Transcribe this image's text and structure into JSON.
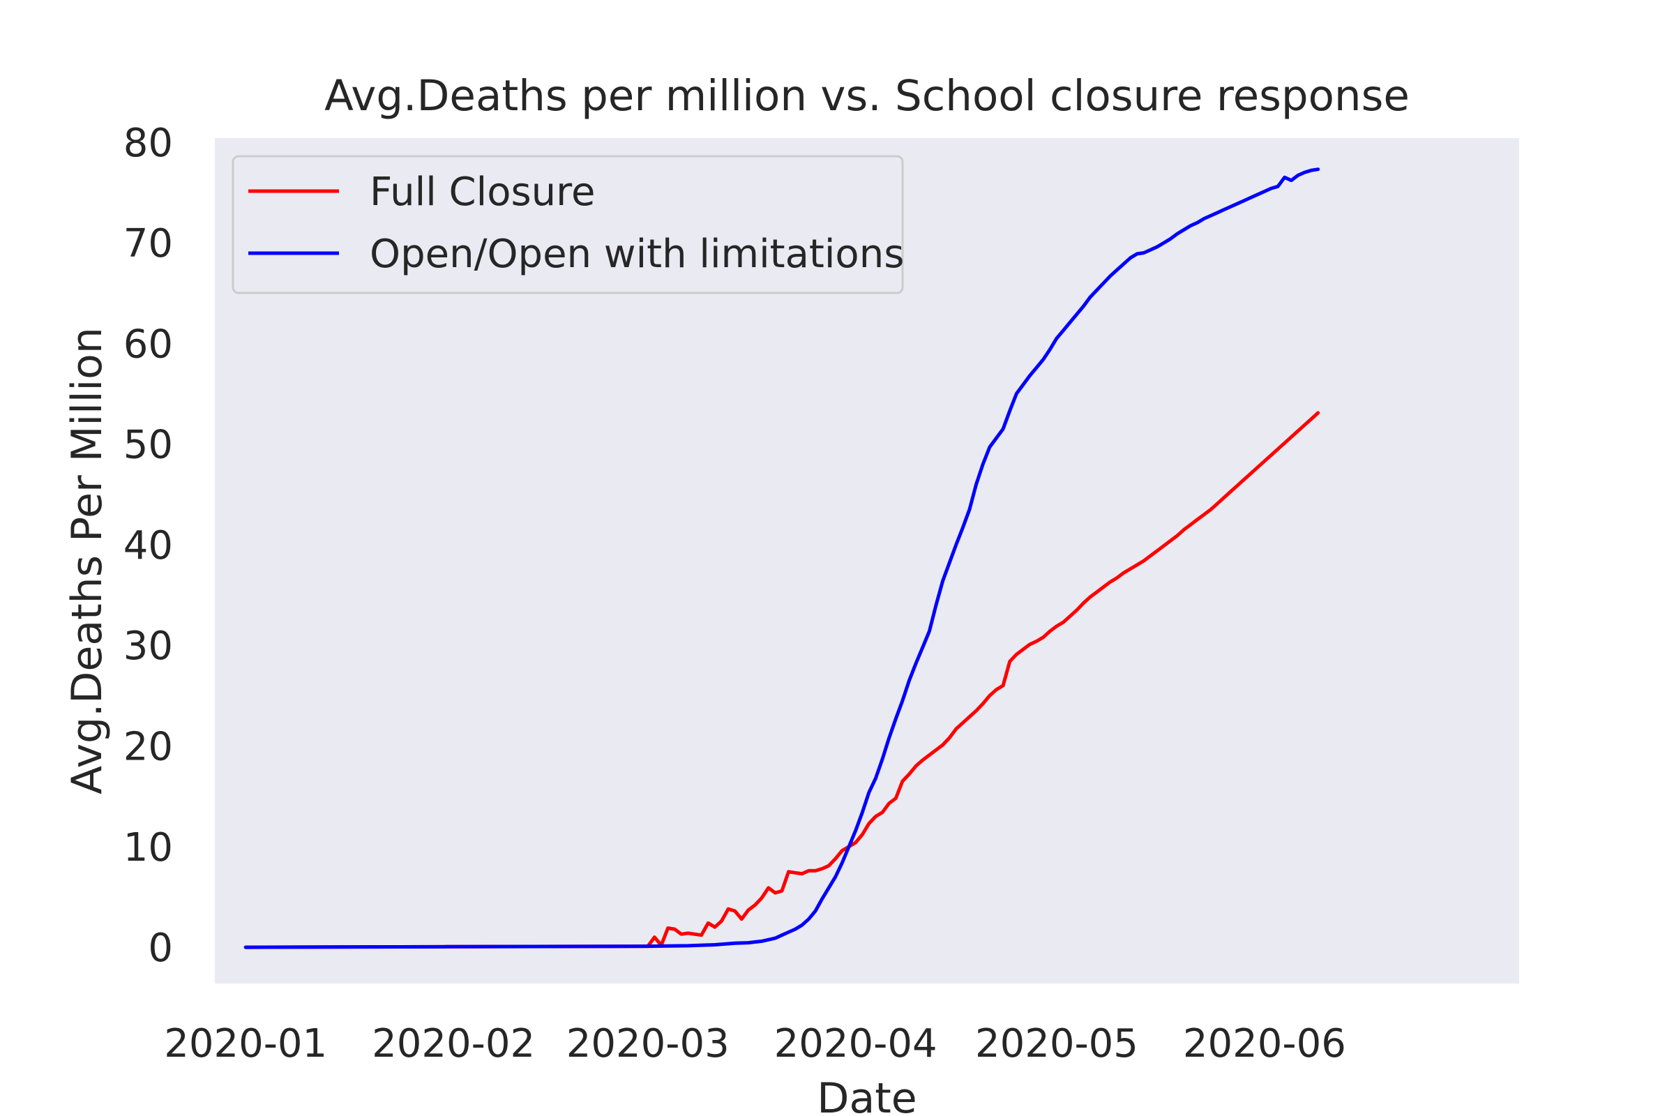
{
  "chart_data": {
    "type": "line",
    "title": "Avg.Deaths per million vs. School closure response",
    "xlabel": "Date",
    "ylabel": "Avg.Deaths Per Million",
    "xlim": [
      -4.6,
      190
    ],
    "ylim": [
      -3.6,
      80.4
    ],
    "x_ticks": [
      {
        "value": 0,
        "label": "2020-01"
      },
      {
        "value": 31,
        "label": "2020-02"
      },
      {
        "value": 60,
        "label": "2020-03"
      },
      {
        "value": 91,
        "label": "2020-04"
      },
      {
        "value": 121,
        "label": "2020-05"
      },
      {
        "value": 152,
        "label": "2020-06"
      }
    ],
    "y_ticks": [
      0,
      10,
      20,
      30,
      40,
      50,
      60,
      70,
      80
    ],
    "grid": false,
    "legend_position": "upper-left",
    "series": [
      {
        "name": "Full Closure",
        "color": "#ff0000",
        "points": [
          [
            0,
            0
          ],
          [
            30,
            0.05
          ],
          [
            60,
            0.1
          ],
          [
            61,
            1.0
          ],
          [
            62,
            0.2
          ],
          [
            63,
            1.9
          ],
          [
            64,
            1.8
          ],
          [
            65,
            1.3
          ],
          [
            66,
            1.4
          ],
          [
            67,
            1.3
          ],
          [
            68,
            1.2
          ],
          [
            69,
            2.4
          ],
          [
            70,
            2.0
          ],
          [
            71,
            2.6
          ],
          [
            72,
            3.8
          ],
          [
            73,
            3.6
          ],
          [
            74,
            2.8
          ],
          [
            75,
            3.7
          ],
          [
            76,
            4.2
          ],
          [
            77,
            4.9
          ],
          [
            78,
            5.9
          ],
          [
            79,
            5.4
          ],
          [
            80,
            5.6
          ],
          [
            81,
            7.5
          ],
          [
            82,
            7.4
          ],
          [
            83,
            7.3
          ],
          [
            84,
            7.6
          ],
          [
            85,
            7.6
          ],
          [
            86,
            7.8
          ],
          [
            87,
            8.1
          ],
          [
            88,
            8.8
          ],
          [
            89,
            9.6
          ],
          [
            90,
            10.0
          ],
          [
            91,
            10.4
          ],
          [
            92,
            11.2
          ],
          [
            93,
            12.3
          ],
          [
            94,
            13.0
          ],
          [
            95,
            13.4
          ],
          [
            96,
            14.3
          ],
          [
            97,
            14.8
          ],
          [
            98,
            16.5
          ],
          [
            99,
            17.2
          ],
          [
            100,
            18.0
          ],
          [
            101,
            18.6
          ],
          [
            102,
            19.1
          ],
          [
            103,
            19.6
          ],
          [
            104,
            20.1
          ],
          [
            105,
            20.8
          ],
          [
            106,
            21.7
          ],
          [
            107,
            22.3
          ],
          [
            108,
            22.9
          ],
          [
            109,
            23.5
          ],
          [
            110,
            24.2
          ],
          [
            111,
            25.0
          ],
          [
            112,
            25.6
          ],
          [
            113,
            26.0
          ],
          [
            114,
            28.4
          ],
          [
            115,
            29.1
          ],
          [
            116,
            29.6
          ],
          [
            117,
            30.1
          ],
          [
            118,
            30.4
          ],
          [
            119,
            30.8
          ],
          [
            120,
            31.4
          ],
          [
            121,
            31.9
          ],
          [
            122,
            32.3
          ],
          [
            123,
            32.9
          ],
          [
            124,
            33.5
          ],
          [
            125,
            34.2
          ],
          [
            126,
            34.8
          ],
          [
            127,
            35.3
          ],
          [
            128,
            35.8
          ],
          [
            129,
            36.3
          ],
          [
            130,
            36.7
          ],
          [
            131,
            37.2
          ],
          [
            132,
            37.6
          ],
          [
            133,
            38.0
          ],
          [
            134,
            38.4
          ],
          [
            135,
            38.9
          ],
          [
            136,
            39.4
          ],
          [
            137,
            39.9
          ],
          [
            138,
            40.4
          ],
          [
            139,
            40.9
          ],
          [
            140,
            41.5
          ],
          [
            141,
            42.0
          ],
          [
            142,
            42.5
          ],
          [
            143,
            43.0
          ],
          [
            144,
            43.5
          ],
          [
            145,
            44.1
          ],
          [
            146,
            44.7
          ],
          [
            147,
            45.3
          ],
          [
            148,
            45.9
          ],
          [
            149,
            46.5
          ],
          [
            150,
            47.1
          ],
          [
            151,
            47.7
          ],
          [
            152,
            48.3
          ],
          [
            153,
            48.9
          ],
          [
            154,
            49.5
          ],
          [
            155,
            50.1
          ],
          [
            156,
            50.7
          ],
          [
            157,
            51.3
          ],
          [
            158,
            51.9
          ],
          [
            159,
            52.5
          ],
          [
            160,
            53.1
          ]
        ]
      },
      {
        "name": "Open/Open with limitations",
        "color": "#0000ff",
        "points": [
          [
            0,
            0
          ],
          [
            30,
            0.05
          ],
          [
            60,
            0.1
          ],
          [
            66,
            0.15
          ],
          [
            70,
            0.25
          ],
          [
            73,
            0.4
          ],
          [
            75,
            0.45
          ],
          [
            77,
            0.6
          ],
          [
            79,
            0.9
          ],
          [
            80,
            1.2
          ],
          [
            81,
            1.5
          ],
          [
            82,
            1.8
          ],
          [
            83,
            2.2
          ],
          [
            84,
            2.8
          ],
          [
            85,
            3.6
          ],
          [
            86,
            4.8
          ],
          [
            87,
            5.9
          ],
          [
            88,
            7.0
          ],
          [
            89,
            8.4
          ],
          [
            90,
            10.0
          ],
          [
            91,
            11.6
          ],
          [
            92,
            13.4
          ],
          [
            93,
            15.4
          ],
          [
            94,
            16.8
          ],
          [
            95,
            18.7
          ],
          [
            96,
            20.8
          ],
          [
            97,
            22.7
          ],
          [
            98,
            24.5
          ],
          [
            99,
            26.5
          ],
          [
            100,
            28.2
          ],
          [
            101,
            29.8
          ],
          [
            102,
            31.4
          ],
          [
            103,
            34.0
          ],
          [
            104,
            36.4
          ],
          [
            105,
            38.2
          ],
          [
            106,
            40.0
          ],
          [
            107,
            41.7
          ],
          [
            108,
            43.5
          ],
          [
            109,
            46.0
          ],
          [
            110,
            48.0
          ],
          [
            111,
            49.7
          ],
          [
            112,
            50.6
          ],
          [
            113,
            51.5
          ],
          [
            114,
            53.3
          ],
          [
            115,
            55.0
          ],
          [
            116,
            55.9
          ],
          [
            117,
            56.8
          ],
          [
            118,
            57.6
          ],
          [
            119,
            58.4
          ],
          [
            120,
            59.4
          ],
          [
            121,
            60.5
          ],
          [
            122,
            61.3
          ],
          [
            123,
            62.1
          ],
          [
            124,
            62.9
          ],
          [
            125,
            63.7
          ],
          [
            126,
            64.6
          ],
          [
            127,
            65.3
          ],
          [
            128,
            66.0
          ],
          [
            129,
            66.7
          ],
          [
            130,
            67.3
          ],
          [
            131,
            67.9
          ],
          [
            132,
            68.5
          ],
          [
            133,
            68.9
          ],
          [
            134,
            69.0
          ],
          [
            135,
            69.3
          ],
          [
            136,
            69.6
          ],
          [
            137,
            70.0
          ],
          [
            138,
            70.4
          ],
          [
            139,
            70.9
          ],
          [
            140,
            71.3
          ],
          [
            141,
            71.7
          ],
          [
            142,
            72.0
          ],
          [
            143,
            72.4
          ],
          [
            144,
            72.7
          ],
          [
            145,
            73.0
          ],
          [
            146,
            73.3
          ],
          [
            147,
            73.6
          ],
          [
            148,
            73.9
          ],
          [
            149,
            74.2
          ],
          [
            150,
            74.5
          ],
          [
            151,
            74.8
          ],
          [
            152,
            75.1
          ],
          [
            153,
            75.4
          ],
          [
            154,
            75.6
          ],
          [
            155,
            76.5
          ],
          [
            156,
            76.2
          ],
          [
            157,
            76.7
          ],
          [
            158,
            77.0
          ],
          [
            159,
            77.2
          ],
          [
            160,
            77.3
          ]
        ]
      }
    ]
  }
}
